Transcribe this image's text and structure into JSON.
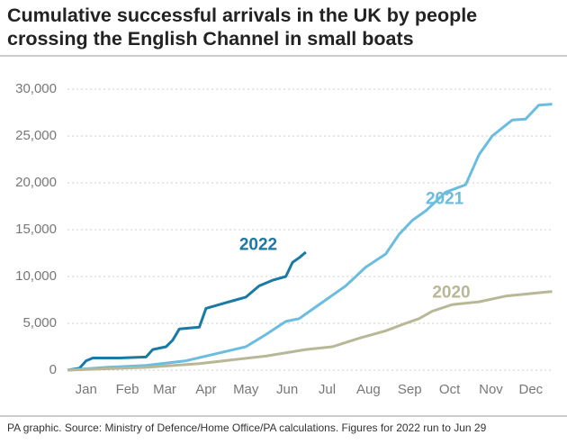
{
  "chart_data": {
    "type": "line",
    "title": "Cumulative successful arrivals in the UK by people crossing the English Channel in small boats",
    "source": "PA graphic. Source: Ministry of Defence/Home Office/PA calculations. Figures for 2022 run to Jun 29",
    "xlim": [
      1,
      366
    ],
    "xticks": [
      {
        "value": 15,
        "label": "Jan"
      },
      {
        "value": 46,
        "label": "Feb"
      },
      {
        "value": 74,
        "label": "Mar"
      },
      {
        "value": 105,
        "label": "Apr"
      },
      {
        "value": 135,
        "label": "May"
      },
      {
        "value": 166,
        "label": "Jun"
      },
      {
        "value": 196,
        "label": "Jul"
      },
      {
        "value": 227,
        "label": "Aug"
      },
      {
        "value": 258,
        "label": "Sep"
      },
      {
        "value": 288,
        "label": "Oct"
      },
      {
        "value": 319,
        "label": "Nov"
      },
      {
        "value": 349,
        "label": "Dec"
      }
    ],
    "ylim": [
      0,
      30000
    ],
    "yticks": [
      {
        "value": 0,
        "label": "0"
      },
      {
        "value": 5000,
        "label": "5,000"
      },
      {
        "value": 10000,
        "label": "10,000"
      },
      {
        "value": 15000,
        "label": "15,000"
      },
      {
        "value": 20000,
        "label": "20,000"
      },
      {
        "value": 25000,
        "label": "25,000"
      },
      {
        "value": 30000,
        "label": "30,000"
      }
    ],
    "grid": true,
    "series": [
      {
        "name": "2022",
        "color": "#1b7aa5",
        "x": [
          1,
          10,
          15,
          20,
          40,
          60,
          65,
          75,
          80,
          85,
          100,
          105,
          115,
          125,
          135,
          145,
          155,
          165,
          170,
          175,
          180
        ],
        "values": [
          0,
          200,
          1000,
          1300,
          1300,
          1400,
          2200,
          2500,
          3200,
          4400,
          4600,
          6600,
          7000,
          7400,
          7800,
          9000,
          9600,
          10000,
          11500,
          12000,
          12600
        ]
      },
      {
        "name": "2021",
        "color": "#6bbde0",
        "x": [
          1,
          30,
          60,
          90,
          120,
          135,
          150,
          165,
          175,
          185,
          195,
          210,
          225,
          240,
          250,
          260,
          270,
          285,
          300,
          310,
          320,
          335,
          345,
          355,
          365
        ],
        "values": [
          0,
          300,
          500,
          1000,
          2000,
          2500,
          3800,
          5200,
          5500,
          6500,
          7500,
          9000,
          11000,
          12400,
          14500,
          16000,
          17000,
          19000,
          19800,
          23000,
          25000,
          26700,
          26800,
          28300,
          28400
        ]
      },
      {
        "name": "2020",
        "color": "#b8b896",
        "x": [
          1,
          60,
          100,
          150,
          180,
          200,
          220,
          240,
          255,
          265,
          275,
          290,
          310,
          330,
          365
        ],
        "values": [
          0,
          300,
          700,
          1500,
          2200,
          2500,
          3400,
          4200,
          5000,
          5500,
          6300,
          7000,
          7300,
          7900,
          8400
        ]
      }
    ]
  }
}
